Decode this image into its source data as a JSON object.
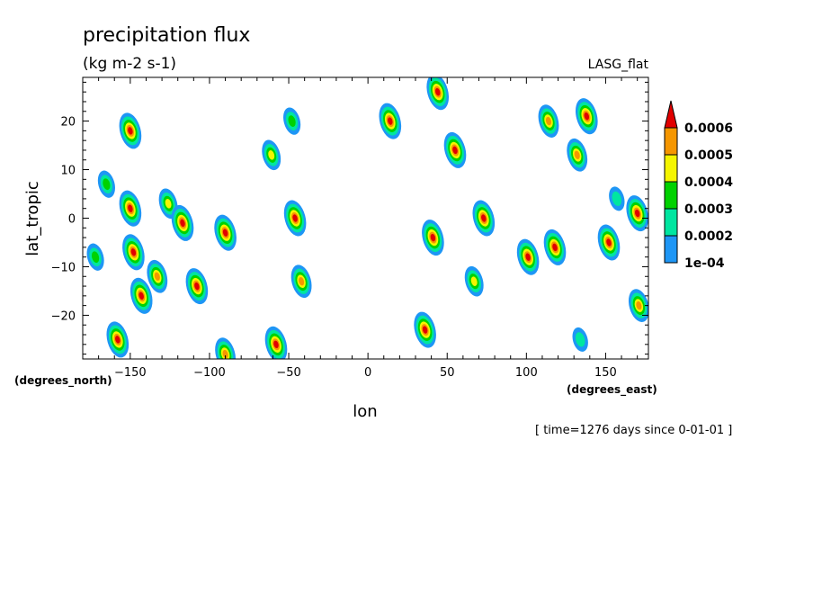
{
  "chart_data": {
    "type": "contour",
    "title": "precipitation flux",
    "units": "(kg m-2 s-1)",
    "model_label": "LASG_flat",
    "xlabel": "lon",
    "ylabel": "lat_tropic",
    "x_units": "(degrees_east)",
    "y_units": "(degrees_north)",
    "time_note": "[ time=1276 days since 0-01-01 ]",
    "xlim": [
      -180,
      177
    ],
    "ylim": [
      -29,
      29
    ],
    "x_ticks": [
      -150,
      -100,
      -50,
      0,
      50,
      100,
      150
    ],
    "y_ticks": [
      -20,
      -10,
      0,
      10,
      20
    ],
    "colorbar": {
      "levels": [
        "1e-04",
        "0.0002",
        "0.0003",
        "0.0004",
        "0.0005",
        "0.0006"
      ],
      "colors": [
        "#1e96f5",
        "#00e6a0",
        "#00d200",
        "#f5f500",
        "#f59600",
        "#e10000"
      ]
    },
    "cells": [
      {
        "lon": -158,
        "lat": -25,
        "max": 0.0007
      },
      {
        "lon": -150,
        "lat": 18,
        "max": 0.0006
      },
      {
        "lon": -150,
        "lat": 2,
        "max": 0.0006
      },
      {
        "lon": -148,
        "lat": -7,
        "max": 0.0006
      },
      {
        "lon": -143,
        "lat": -16,
        "max": 0.0006
      },
      {
        "lon": -133,
        "lat": -12,
        "max": 0.00055
      },
      {
        "lon": -126,
        "lat": 3,
        "max": 0.0004
      },
      {
        "lon": -117,
        "lat": -1,
        "max": 0.0006
      },
      {
        "lon": -108,
        "lat": -14,
        "max": 0.0006
      },
      {
        "lon": -90,
        "lat": -3,
        "max": 0.0006
      },
      {
        "lon": -90,
        "lat": -28,
        "max": 0.00055
      },
      {
        "lon": -61,
        "lat": 13,
        "max": 0.00045
      },
      {
        "lon": -58,
        "lat": -26,
        "max": 0.0006
      },
      {
        "lon": -46,
        "lat": 0,
        "max": 0.0006
      },
      {
        "lon": -42,
        "lat": -13,
        "max": 0.0005
      },
      {
        "lon": -48,
        "lat": 20,
        "max": 0.0003
      },
      {
        "lon": -165,
        "lat": 7,
        "max": 0.0003
      },
      {
        "lon": -172,
        "lat": -8,
        "max": 0.0003
      },
      {
        "lon": 14,
        "lat": 20,
        "max": 0.0006
      },
      {
        "lon": 36,
        "lat": -23,
        "max": 0.0007
      },
      {
        "lon": 41,
        "lat": -4,
        "max": 0.0006
      },
      {
        "lon": 44,
        "lat": 26,
        "max": 0.0007
      },
      {
        "lon": 55,
        "lat": 14,
        "max": 0.0006
      },
      {
        "lon": 73,
        "lat": 0,
        "max": 0.0007
      },
      {
        "lon": 67,
        "lat": -13,
        "max": 0.0004
      },
      {
        "lon": 101,
        "lat": -8,
        "max": 0.0006
      },
      {
        "lon": 118,
        "lat": -6,
        "max": 0.0006
      },
      {
        "lon": 114,
        "lat": 20,
        "max": 0.0005
      },
      {
        "lon": 132,
        "lat": 13,
        "max": 0.0005
      },
      {
        "lon": 138,
        "lat": 21,
        "max": 0.0006
      },
      {
        "lon": 152,
        "lat": -5,
        "max": 0.0006
      },
      {
        "lon": 170,
        "lat": 1,
        "max": 0.0006
      },
      {
        "lon": 171,
        "lat": -18,
        "max": 0.0005
      },
      {
        "lon": 157,
        "lat": 4,
        "max": 0.0002
      },
      {
        "lon": 134,
        "lat": -25,
        "max": 0.0002
      }
    ]
  }
}
